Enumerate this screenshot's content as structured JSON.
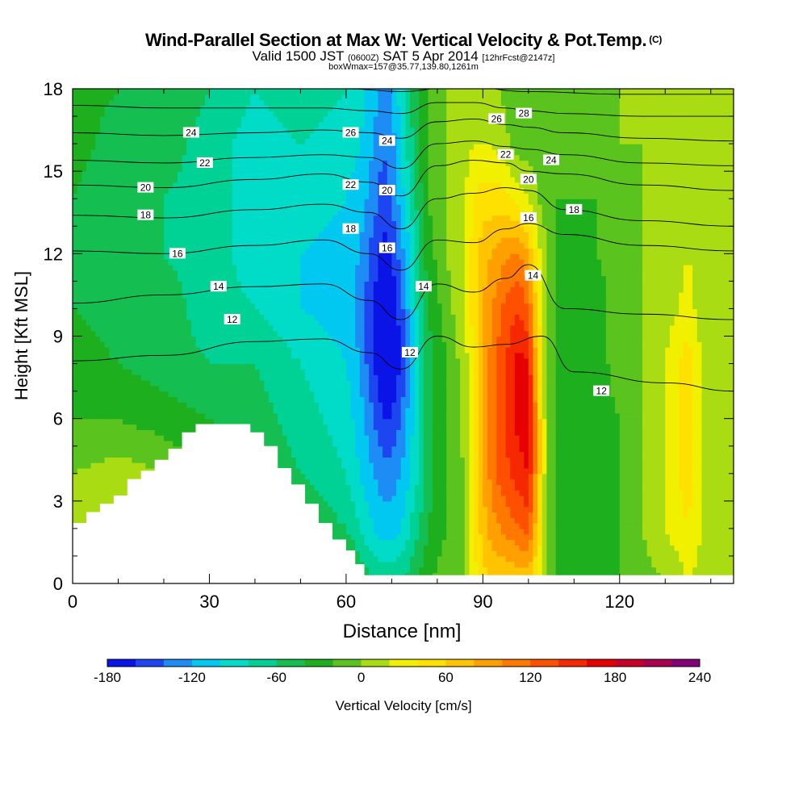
{
  "title": {
    "main": "Wind-Parallel Section at Max W: Vertical Velocity & Pot.Temp.",
    "copyright": "(C)",
    "valid_prefix": "Valid 1500 JST",
    "valid_z": "(0600Z)",
    "valid_date": "SAT 5 Apr 2014",
    "forecast": "[12hrFcst@2147z]",
    "box_info": "boxWmax=157@35.77,139.80,1261m"
  },
  "chart_data": {
    "type": "heatmap",
    "xlabel": "Distance [nm]",
    "ylabel": "Height [Kft MSL]",
    "xlim": [
      0,
      145
    ],
    "ylim": [
      0,
      18
    ],
    "x_ticks": [
      "0",
      "30",
      "60",
      "90",
      "120"
    ],
    "y_ticks": [
      "0",
      "3",
      "6",
      "9",
      "12",
      "15",
      "18"
    ],
    "colorbar": {
      "label": "Vertical Velocity [cm/s]",
      "tick_labels": [
        "-180",
        "-120",
        "-60",
        "0",
        "60",
        "120",
        "180",
        "240"
      ],
      "levels": [
        -180,
        -160,
        -140,
        -120,
        -100,
        -80,
        -60,
        -40,
        -20,
        0,
        20,
        40,
        60,
        80,
        100,
        120,
        140,
        160,
        180,
        200,
        220,
        240
      ],
      "colors": [
        "#0a14e6",
        "#1e46f0",
        "#1e8cf5",
        "#00c8f0",
        "#00dcc8",
        "#00d296",
        "#14be50",
        "#1eaf1e",
        "#5ac31e",
        "#aadc14",
        "#f0f000",
        "#ffe100",
        "#ffc300",
        "#ffa000",
        "#ff7800",
        "#ff5000",
        "#f52800",
        "#e60000",
        "#c80028",
        "#aa0050",
        "#820078"
      ]
    },
    "w_cm_per_s": {
      "x": [
        0,
        10,
        20,
        30,
        40,
        50,
        60,
        63,
        66,
        68,
        70,
        72,
        74,
        76,
        78,
        82,
        86,
        88,
        90,
        92,
        94,
        96,
        98,
        100,
        102,
        104,
        106,
        110,
        115,
        120,
        125,
        130,
        133,
        135,
        138,
        142,
        145
      ],
      "y": [
        0,
        2,
        4,
        6,
        8,
        10,
        12,
        14,
        16,
        18
      ],
      "values": [
        [
          0,
          20,
          10,
          0,
          -10,
          -10,
          -20,
          -40,
          -60,
          -60,
          -60,
          -60,
          -50,
          -40,
          -20,
          -10,
          0,
          30,
          50,
          60,
          60,
          60,
          60,
          60,
          40,
          0,
          -20,
          -30,
          -30,
          -20,
          -10,
          0,
          10,
          20,
          10,
          0,
          0
        ],
        [
          10,
          20,
          10,
          -10,
          -20,
          -40,
          -60,
          -80,
          -100,
          -110,
          -110,
          -100,
          -80,
          -60,
          -40,
          -20,
          0,
          40,
          70,
          90,
          100,
          110,
          120,
          130,
          60,
          0,
          -20,
          -30,
          -30,
          -20,
          0,
          20,
          30,
          40,
          20,
          0,
          10
        ],
        [
          0,
          10,
          0,
          -20,
          -40,
          -60,
          -80,
          -100,
          -120,
          -130,
          -130,
          -120,
          -100,
          -80,
          -50,
          -20,
          0,
          40,
          80,
          110,
          130,
          140,
          150,
          160,
          80,
          0,
          -20,
          -30,
          -30,
          -20,
          0,
          20,
          40,
          50,
          20,
          0,
          20
        ],
        [
          -20,
          -20,
          -30,
          -40,
          -50,
          -70,
          -90,
          -110,
          -140,
          -160,
          -160,
          -140,
          -110,
          -80,
          -50,
          -20,
          10,
          40,
          80,
          110,
          130,
          150,
          170,
          180,
          80,
          0,
          -20,
          -30,
          -30,
          -20,
          0,
          20,
          40,
          50,
          20,
          0,
          0
        ],
        [
          -30,
          -40,
          -50,
          -60,
          -60,
          -80,
          -100,
          -120,
          -160,
          -180,
          -180,
          -160,
          -120,
          -80,
          -50,
          -20,
          10,
          40,
          80,
          110,
          130,
          150,
          170,
          160,
          60,
          0,
          -20,
          -30,
          -30,
          -10,
          0,
          20,
          40,
          50,
          20,
          0,
          0
        ],
        [
          -40,
          -50,
          -50,
          -70,
          -80,
          -100,
          -110,
          -130,
          -160,
          -180,
          -180,
          -150,
          -110,
          -70,
          -40,
          -10,
          20,
          50,
          80,
          100,
          120,
          130,
          140,
          120,
          50,
          0,
          -20,
          -30,
          -30,
          -10,
          0,
          10,
          20,
          30,
          10,
          0,
          0
        ],
        [
          -40,
          -60,
          -60,
          -70,
          -90,
          -100,
          -110,
          -120,
          -150,
          -170,
          -160,
          -130,
          -100,
          -60,
          -30,
          0,
          20,
          50,
          70,
          80,
          90,
          100,
          100,
          80,
          30,
          0,
          -20,
          -30,
          -20,
          -10,
          0,
          0,
          10,
          20,
          10,
          0,
          0
        ],
        [
          -40,
          -60,
          -60,
          -70,
          -90,
          -90,
          -100,
          -110,
          -130,
          -150,
          -140,
          -110,
          -80,
          -50,
          -20,
          0,
          20,
          40,
          50,
          50,
          50,
          40,
          30,
          20,
          0,
          -10,
          -20,
          -20,
          -20,
          -10,
          0,
          0,
          0,
          10,
          0,
          0,
          0
        ],
        [
          -30,
          -50,
          -50,
          -70,
          -90,
          -80,
          -90,
          -100,
          -120,
          -140,
          -130,
          -100,
          -70,
          -40,
          -20,
          0,
          10,
          20,
          20,
          20,
          10,
          0,
          -10,
          -10,
          -10,
          -20,
          -20,
          -20,
          -10,
          0,
          0,
          0,
          0,
          0,
          0,
          0,
          0
        ],
        [
          -30,
          -40,
          -40,
          -60,
          -80,
          -70,
          -80,
          -90,
          -110,
          -130,
          -120,
          -90,
          -60,
          -40,
          -20,
          0,
          0,
          10,
          10,
          0,
          0,
          -10,
          -10,
          -10,
          -20,
          -20,
          -20,
          -10,
          0,
          0,
          0,
          0,
          0,
          0,
          0,
          0,
          0
        ]
      ]
    },
    "terrain_profile": {
      "x": [
        0,
        3,
        6,
        9,
        12,
        15,
        18,
        21,
        24,
        27,
        30,
        33,
        36,
        39,
        42,
        45,
        48,
        51,
        54,
        57,
        60,
        62,
        64,
        66,
        70,
        80,
        100,
        145
      ],
      "height_kft": [
        2.2,
        2.6,
        2.9,
        3.2,
        3.8,
        4.1,
        4.5,
        4.9,
        5.5,
        5.8,
        5.8,
        5.8,
        5.8,
        5.5,
        5.0,
        4.2,
        3.6,
        2.9,
        2.2,
        1.6,
        1.2,
        0.7,
        0.3,
        0.3,
        0.3,
        0.3,
        0.3,
        0.3
      ]
    },
    "theta_contours": [
      {
        "label": "12",
        "x": [
          0,
          20,
          40,
          55,
          65,
          72,
          80,
          88,
          95,
          103,
          110,
          130,
          145
        ],
        "y": [
          8.1,
          8.3,
          8.8,
          8.9,
          8.4,
          7.8,
          9.0,
          8.6,
          8.7,
          9.0,
          7.7,
          7.3,
          7.0
        ]
      },
      {
        "label": "14",
        "x": [
          0,
          20,
          40,
          55,
          65,
          72,
          80,
          88,
          95,
          100,
          108,
          125,
          145
        ],
        "y": [
          10.2,
          10.5,
          10.8,
          10.9,
          10.3,
          9.6,
          10.9,
          10.6,
          11.1,
          11.6,
          10.0,
          9.8,
          9.6
        ]
      },
      {
        "label": "16",
        "x": [
          0,
          20,
          40,
          55,
          65,
          72,
          80,
          88,
          95,
          100,
          108,
          125,
          145
        ],
        "y": [
          12.1,
          12.0,
          12.3,
          12.5,
          12.0,
          11.4,
          12.5,
          12.4,
          12.9,
          13.1,
          12.7,
          12.3,
          12.1
        ]
      },
      {
        "label": "18",
        "x": [
          0,
          20,
          40,
          55,
          65,
          72,
          80,
          88,
          95,
          100,
          108,
          125,
          145
        ],
        "y": [
          13.4,
          13.3,
          13.6,
          13.8,
          13.5,
          12.9,
          14.0,
          14.2,
          14.4,
          14.3,
          13.6,
          13.2,
          13.0
        ]
      },
      {
        "label": "20",
        "x": [
          0,
          20,
          40,
          55,
          65,
          72,
          80,
          88,
          95,
          100,
          108,
          125,
          145
        ],
        "y": [
          14.5,
          14.4,
          14.7,
          14.9,
          14.6,
          14.1,
          15.2,
          15.4,
          15.3,
          15.0,
          14.9,
          14.5,
          14.3
        ]
      },
      {
        "label": "22",
        "x": [
          0,
          20,
          40,
          55,
          65,
          72,
          80,
          88,
          95,
          100,
          108,
          125,
          145
        ],
        "y": [
          15.4,
          15.3,
          15.5,
          15.6,
          15.5,
          15.1,
          16.0,
          16.1,
          15.9,
          15.8,
          15.6,
          15.3,
          15.2
        ]
      },
      {
        "label": "24",
        "x": [
          0,
          20,
          40,
          55,
          65,
          72,
          80,
          88,
          95,
          100,
          108,
          125,
          145
        ],
        "y": [
          16.4,
          16.3,
          16.4,
          16.5,
          16.4,
          16.2,
          16.8,
          16.9,
          16.7,
          16.6,
          16.4,
          16.2,
          16.1
        ]
      },
      {
        "label": "26",
        "x": [
          0,
          20,
          40,
          55,
          65,
          72,
          80,
          88,
          95,
          100,
          108,
          125,
          145
        ],
        "y": [
          17.4,
          17.3,
          17.3,
          17.3,
          17.2,
          17.1,
          17.5,
          17.5,
          17.3,
          17.2,
          17.1,
          17.0,
          17.0
        ]
      },
      {
        "label": "28",
        "x": [
          0,
          30,
          60,
          72,
          85,
          100,
          120,
          145
        ],
        "y": [
          18.2,
          18.1,
          18.0,
          17.9,
          18.1,
          17.9,
          17.8,
          17.8
        ]
      }
    ],
    "contour_labels": [
      {
        "text": "24",
        "x": 26,
        "y": 16.4
      },
      {
        "text": "22",
        "x": 29,
        "y": 15.3
      },
      {
        "text": "20",
        "x": 16,
        "y": 14.4
      },
      {
        "text": "18",
        "x": 16,
        "y": 13.4
      },
      {
        "text": "16",
        "x": 23,
        "y": 12.0
      },
      {
        "text": "14",
        "x": 32,
        "y": 10.8
      },
      {
        "text": "12",
        "x": 35,
        "y": 9.6
      },
      {
        "text": "26",
        "x": 61,
        "y": 16.4
      },
      {
        "text": "24",
        "x": 69,
        "y": 16.1
      },
      {
        "text": "22",
        "x": 61,
        "y": 14.5
      },
      {
        "text": "20",
        "x": 69,
        "y": 14.3
      },
      {
        "text": "18",
        "x": 61,
        "y": 12.9
      },
      {
        "text": "16",
        "x": 69,
        "y": 12.2
      },
      {
        "text": "14",
        "x": 77,
        "y": 10.8
      },
      {
        "text": "12",
        "x": 74,
        "y": 8.4
      },
      {
        "text": "26",
        "x": 93,
        "y": 16.9
      },
      {
        "text": "28",
        "x": 99,
        "y": 17.1
      },
      {
        "text": "22",
        "x": 95,
        "y": 15.6
      },
      {
        "text": "24",
        "x": 105,
        "y": 15.4
      },
      {
        "text": "20",
        "x": 100,
        "y": 14.7
      },
      {
        "text": "18",
        "x": 110,
        "y": 13.6
      },
      {
        "text": "16",
        "x": 100,
        "y": 13.3
      },
      {
        "text": "14",
        "x": 101,
        "y": 11.2
      },
      {
        "text": "12",
        "x": 116,
        "y": 7.0
      }
    ]
  }
}
